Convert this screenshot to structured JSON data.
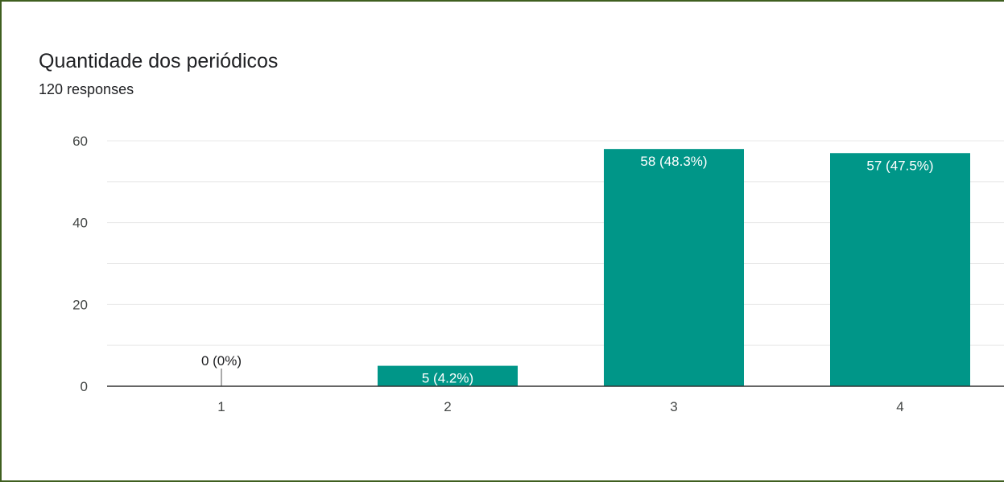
{
  "chart_data": {
    "type": "bar",
    "title": "Quantidade dos periódicos",
    "subtitle": "120 responses",
    "categories": [
      "1",
      "2",
      "3",
      "4"
    ],
    "values": [
      0,
      5,
      58,
      57
    ],
    "data_labels": [
      "0 (0%)",
      "5 (4.2%)",
      "58 (48.3%)",
      "57 (47.5%)"
    ],
    "xlabel": "",
    "ylabel": "",
    "ylim": [
      0,
      60
    ],
    "yticks": [
      0,
      20,
      40,
      60
    ],
    "grid": true,
    "bar_color": "#009688",
    "grid_color": "#e8e8e8",
    "axis_color": "#333333",
    "frame_color": "#3f5f20"
  }
}
